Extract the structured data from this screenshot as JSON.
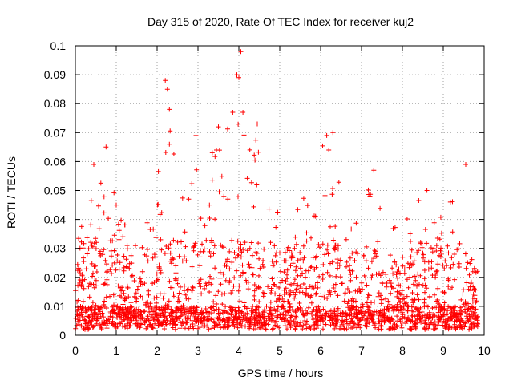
{
  "chart_data": {
    "type": "scatter",
    "title": "Day 315 of 2020, Rate Of TEC Index for receiver kuj2",
    "xlabel": "GPS time / hours",
    "ylabel": "ROTI / TECUs",
    "xlim": [
      0,
      10
    ],
    "ylim": [
      0,
      0.1
    ],
    "grid": true,
    "marker": "plus",
    "series_color": "#ff0000",
    "x_ticks": [
      0,
      1,
      2,
      3,
      4,
      5,
      6,
      7,
      8,
      9,
      10
    ],
    "x_tick_labels": [
      "0",
      "1",
      "2",
      "3",
      "4",
      "5",
      "6",
      "7",
      "8",
      "9",
      "10"
    ],
    "y_ticks": [
      0,
      0.01,
      0.02,
      0.03,
      0.04,
      0.05,
      0.06,
      0.07,
      0.08,
      0.09,
      0.1
    ],
    "y_tick_labels": [
      "0",
      "0.01",
      "0.02",
      "0.03",
      "0.04",
      "0.05",
      "0.06",
      "0.07",
      "0.08",
      "0.09",
      "0.1"
    ],
    "density_profile": [
      {
        "x": 0.0,
        "upper": 0.035
      },
      {
        "x": 0.3,
        "upper": 0.045
      },
      {
        "x": 0.5,
        "upper": 0.058
      },
      {
        "x": 0.75,
        "upper": 0.064
      },
      {
        "x": 1.0,
        "upper": 0.045
      },
      {
        "x": 1.5,
        "upper": 0.033
      },
      {
        "x": 2.0,
        "upper": 0.06
      },
      {
        "x": 2.25,
        "upper": 0.088
      },
      {
        "x": 2.5,
        "upper": 0.05
      },
      {
        "x": 3.0,
        "upper": 0.068
      },
      {
        "x": 3.5,
        "upper": 0.072
      },
      {
        "x": 3.9,
        "upper": 0.09
      },
      {
        "x": 4.1,
        "upper": 0.078
      },
      {
        "x": 4.5,
        "upper": 0.073
      },
      {
        "x": 5.0,
        "upper": 0.045
      },
      {
        "x": 5.5,
        "upper": 0.05
      },
      {
        "x": 6.0,
        "upper": 0.068
      },
      {
        "x": 6.3,
        "upper": 0.07
      },
      {
        "x": 6.6,
        "upper": 0.04
      },
      {
        "x": 7.0,
        "upper": 0.045
      },
      {
        "x": 7.3,
        "upper": 0.057
      },
      {
        "x": 7.6,
        "upper": 0.035
      },
      {
        "x": 8.0,
        "upper": 0.04
      },
      {
        "x": 8.5,
        "upper": 0.05
      },
      {
        "x": 9.0,
        "upper": 0.044
      },
      {
        "x": 9.5,
        "upper": 0.058
      },
      {
        "x": 9.8,
        "upper": 0.035
      }
    ],
    "notable_points": [
      {
        "x": 4.05,
        "y": 0.098
      },
      {
        "x": 3.95,
        "y": 0.09
      },
      {
        "x": 4.0,
        "y": 0.089
      },
      {
        "x": 2.2,
        "y": 0.088
      },
      {
        "x": 2.25,
        "y": 0.085
      },
      {
        "x": 2.3,
        "y": 0.078
      },
      {
        "x": 2.3,
        "y": 0.066
      },
      {
        "x": 4.1,
        "y": 0.077
      },
      {
        "x": 3.85,
        "y": 0.077
      },
      {
        "x": 3.5,
        "y": 0.072
      },
      {
        "x": 4.45,
        "y": 0.073
      },
      {
        "x": 2.95,
        "y": 0.069
      },
      {
        "x": 6.3,
        "y": 0.07
      },
      {
        "x": 6.15,
        "y": 0.069
      },
      {
        "x": 0.75,
        "y": 0.065
      },
      {
        "x": 3.45,
        "y": 0.064
      },
      {
        "x": 6.2,
        "y": 0.064
      },
      {
        "x": 9.55,
        "y": 0.059
      },
      {
        "x": 0.45,
        "y": 0.059
      },
      {
        "x": 7.3,
        "y": 0.057
      },
      {
        "x": 8.6,
        "y": 0.05
      },
      {
        "x": 1.0,
        "y": 0.045
      }
    ],
    "point_count": 2200
  }
}
